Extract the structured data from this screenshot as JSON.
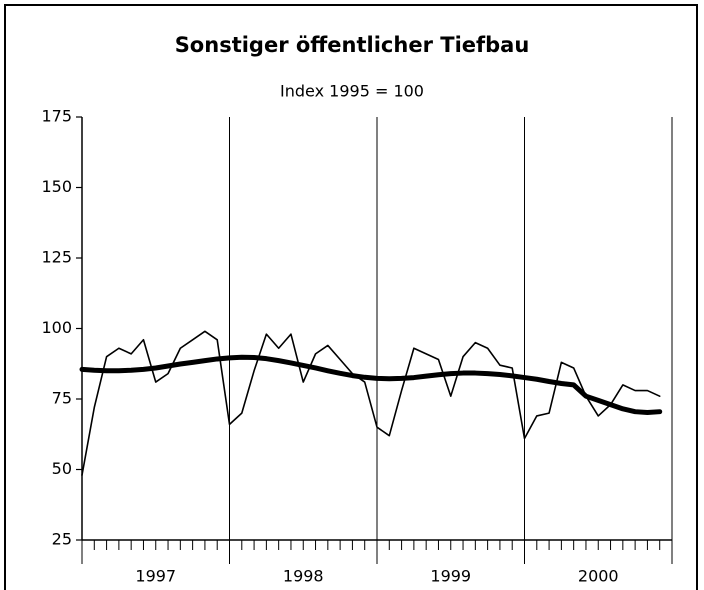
{
  "chart_data": {
    "type": "line",
    "title": "Sonstiger öffentlicher Tiefbau",
    "subtitle": "Index 1995 = 100",
    "years": [
      "1997",
      "1998",
      "1999",
      "2000"
    ],
    "ylim": [
      25,
      175
    ],
    "yticks": [
      25,
      50,
      75,
      100,
      125,
      150,
      175
    ],
    "series": [
      {
        "color": "#000000",
        "width": 1.6,
        "values": [
          48,
          72,
          90,
          93,
          91,
          96,
          81,
          84,
          93,
          96,
          99,
          96,
          66,
          70,
          85,
          98,
          93,
          98,
          81,
          91,
          94,
          89,
          84,
          81,
          65,
          62,
          78,
          93,
          91,
          89,
          76,
          90,
          95,
          93,
          87,
          86,
          61,
          69,
          70,
          88,
          86,
          76,
          69,
          73,
          80,
          78,
          78,
          76
        ]
      },
      {
        "color": "#000000",
        "width": 5,
        "values": [
          85.5,
          85.2,
          85,
          85,
          85.2,
          85.5,
          86,
          86.7,
          87.4,
          88,
          88.6,
          89.2,
          89.6,
          89.8,
          89.7,
          89.3,
          88.6,
          87.8,
          86.9,
          86,
          85,
          84.1,
          83.3,
          82.7,
          82.3,
          82.2,
          82.3,
          82.6,
          83.1,
          83.6,
          84,
          84.2,
          84.2,
          84,
          83.7,
          83.2,
          82.6,
          82,
          81.2,
          80.5,
          80,
          76,
          74.5,
          73,
          71.5,
          70.5,
          70.2,
          70.5
        ]
      }
    ]
  }
}
